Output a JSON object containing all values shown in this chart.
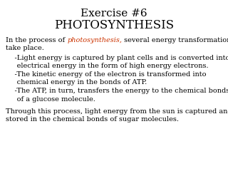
{
  "title_line1": "Exercise #6",
  "title_line2": "PHOTOSYNTHESIS",
  "title1_fontsize": 11,
  "title2_fontsize": 12,
  "body_fontsize": 7.0,
  "bg_color": "#ffffff",
  "text_color": "#000000",
  "highlight_color": "#cc3300",
  "para1_prefix": "In the process of ",
  "para1_highlight": "photosynthesis,",
  "para1_suffix": " several energy transformations",
  "para1_line2": "take place.",
  "bullet1_line1": "    -Light energy is captured by plant cells and is converted into",
  "bullet1_line2": "     electrical energy in the form of high energy electrons.",
  "bullet2_line1": "    -The kinetic energy of the electron is transformed into",
  "bullet2_line2": "     chemical energy in the bonds of ATP.",
  "bullet3_line1": "    -The ATP, in turn, transfers the energy to the chemical bonds",
  "bullet3_line2": "     of a glucose molecule.",
  "para2_line1": "Through this process, light energy from the sun is captured and",
  "para2_line2": "stored in the chemical bonds of sugar molecules."
}
